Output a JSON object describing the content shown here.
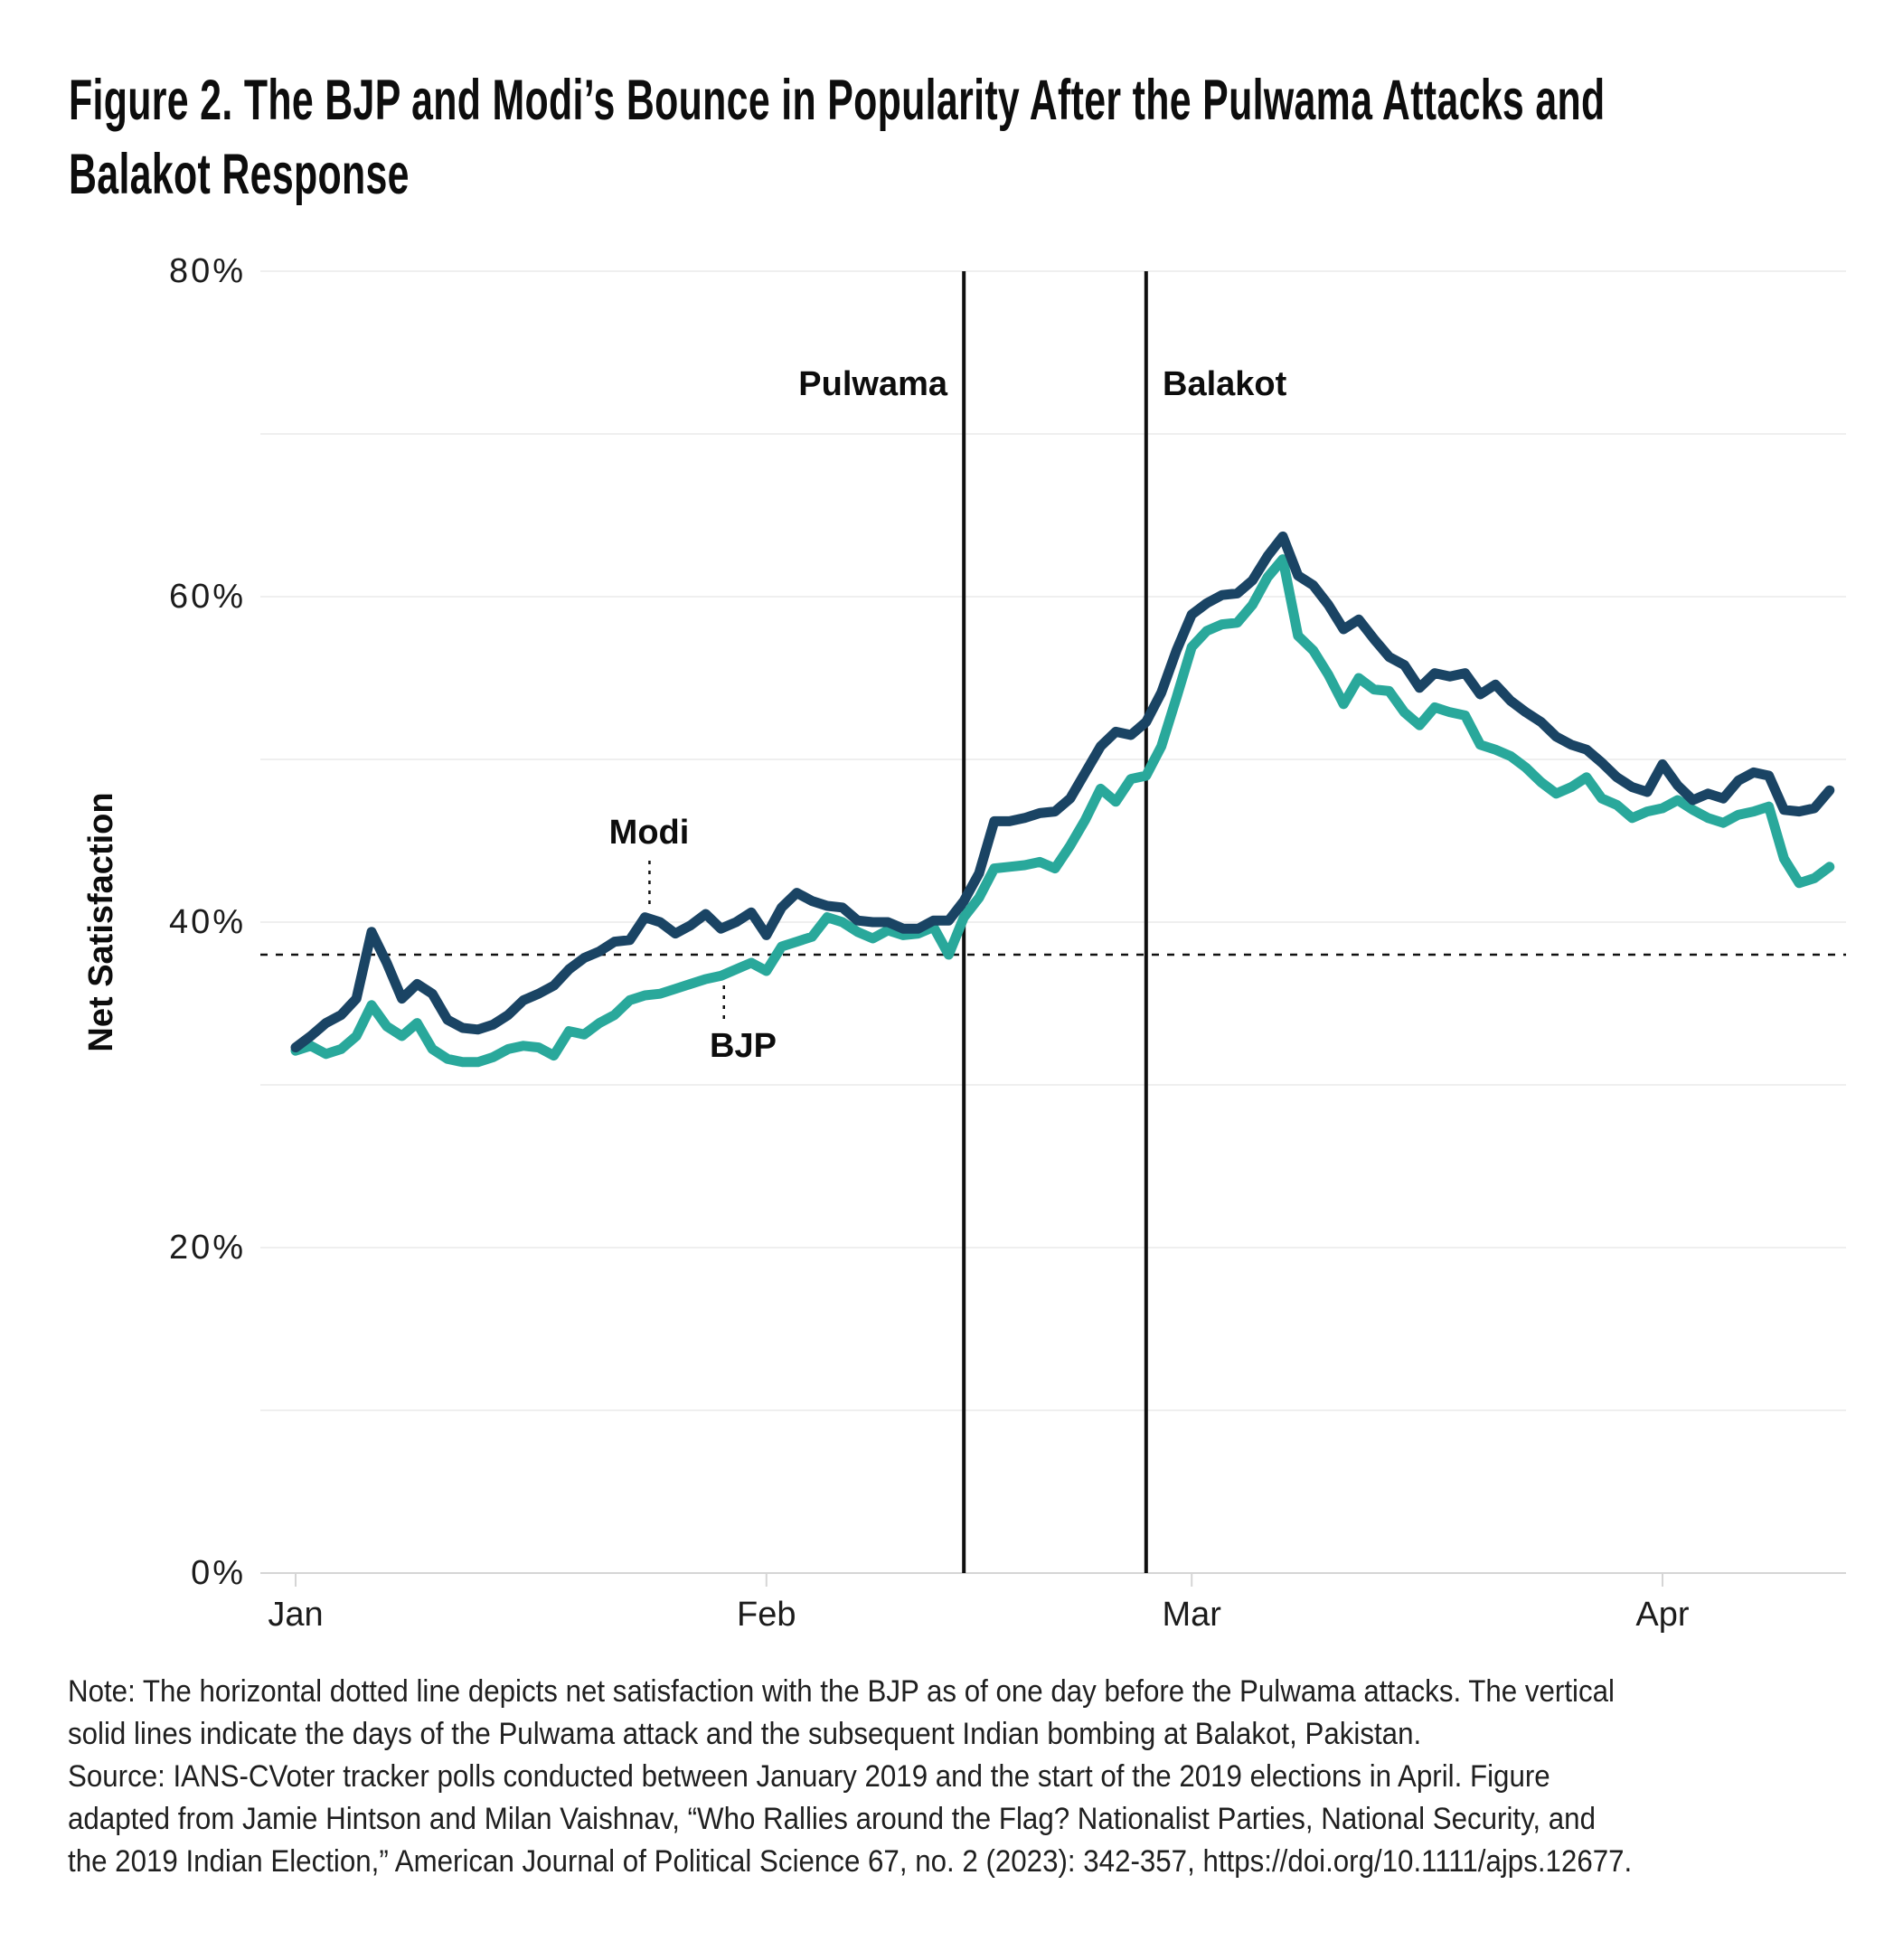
{
  "figure": {
    "title": "Figure 2. The BJP and Modi’s Bounce in Popularity After the Pulwama Attacks and Balakot Response",
    "title_lines": [
      "Figure 2. The BJP and Modi’s Bounce in Popularity After the Pulwama Attacks and",
      "Balakot Response"
    ]
  },
  "axes": {
    "y_label": "Net Satisfaction",
    "y_ticks": [
      {
        "value": 0,
        "label": "0%"
      },
      {
        "value": 20,
        "label": "20%"
      },
      {
        "value": 40,
        "label": "40%"
      },
      {
        "value": 60,
        "label": "60%"
      },
      {
        "value": 80,
        "label": "80%"
      }
    ],
    "grid_values": [
      10,
      20,
      30,
      40,
      50,
      60,
      70,
      80
    ],
    "x_ticks": [
      {
        "day": 0,
        "label": "Jan"
      },
      {
        "day": 31,
        "label": "Feb"
      },
      {
        "day": 59,
        "label": "Mar"
      },
      {
        "day": 90,
        "label": "Apr"
      }
    ],
    "ylim": [
      0,
      80
    ]
  },
  "events": [
    {
      "label": "Pulwama",
      "day": 44,
      "label_side": "left"
    },
    {
      "label": "Balakot",
      "day": 56,
      "label_side": "right"
    }
  ],
  "reference_line": {
    "value": 38,
    "style": "dotted",
    "meaning": "Net satisfaction with the BJP as of one day before the Pulwama attacks"
  },
  "annotations": [
    {
      "label": "Modi",
      "series": "Modi",
      "day": 23.3
    },
    {
      "label": "BJP",
      "series": "BJP",
      "day": 28.2
    }
  ],
  "colors": {
    "modi": "#1a4464",
    "bjp": "#29a89b",
    "event_line": "#0f0f0f",
    "reference_line": "#111111",
    "leader_line": "#111111",
    "grid": "#efefef",
    "axis": "#d5d5d5",
    "text": "#111111"
  },
  "note": {
    "lines": [
      "Note: The horizontal dotted line depicts net satisfaction with the BJP as of one day before the Pulwama attacks. The vertical",
      "solid lines indicate the days of the Pulwama attack and the subsequent Indian bombing at Balakot, Pakistan.",
      "Source: IANS-CVoter tracker polls conducted between January 2019 and the start of the 2019 elections in April. Figure",
      "adapted from Jamie Hintson and Milan Vaishnav, “Who Rallies around the Flag? Nationalist Parties, National Security, and",
      "the 2019 Indian Election,” American Journal of Political Science 67, no. 2 (2023): 342-357, https://doi.org/10.1111/ajps.12677."
    ]
  },
  "chart_data": {
    "type": "line",
    "title": "Figure 2. The BJP and Modi’s Bounce in Popularity After the Pulwama Attacks and Balakot Response",
    "xlabel": "",
    "ylabel": "Net Satisfaction",
    "ylim": [
      0,
      80
    ],
    "grid": "horizontal, every 10%",
    "legend_position": "inline annotations",
    "x_unit": "daily tracker poll, day offset from first point (Jan)",
    "x_tick_labels": [
      "Jan",
      "Feb",
      "Mar",
      "Apr"
    ],
    "x_tick_days": [
      0,
      31,
      59,
      90
    ],
    "event_days": {
      "Pulwama": 44,
      "Balakot": 56
    },
    "reference_line_value": 38,
    "series": [
      {
        "name": "Modi",
        "start_day": 0,
        "values": [
          32.3,
          33.0,
          33.8,
          34.3,
          35.3,
          39.4,
          37.5,
          35.3,
          36.2,
          35.6,
          34.0,
          33.5,
          33.4,
          33.7,
          34.3,
          35.2,
          35.6,
          36.1,
          37.1,
          37.8,
          38.2,
          38.8,
          38.9,
          40.3,
          40.0,
          39.3,
          39.8,
          40.5,
          39.6,
          40.0,
          40.6,
          39.2,
          40.9,
          41.8,
          41.3,
          41.0,
          40.9,
          40.1,
          40.0,
          40.0,
          39.6,
          39.6,
          40.1,
          40.1,
          41.3,
          43.0,
          46.2,
          46.2,
          46.4,
          46.7,
          46.8,
          47.6,
          49.2,
          50.8,
          51.7,
          51.5,
          52.3,
          54.1,
          56.7,
          58.9,
          59.6,
          60.1,
          60.2,
          61.0,
          62.5,
          63.7,
          61.3,
          60.7,
          59.5,
          58.0,
          58.6,
          57.4,
          56.3,
          55.8,
          54.4,
          55.3,
          55.1,
          55.3,
          54.0,
          54.6,
          53.6,
          52.9,
          52.3,
          51.4,
          50.9,
          50.6,
          49.8,
          48.9,
          48.3,
          48.0,
          49.7,
          48.4,
          47.5,
          47.9,
          47.6,
          48.7,
          49.2,
          49.0,
          46.9,
          46.8,
          47.0,
          48.1
        ]
      },
      {
        "name": "BJP",
        "start_day": 0,
        "values": [
          32.1,
          32.4,
          31.9,
          32.2,
          33.0,
          34.9,
          33.6,
          33.0,
          33.8,
          32.2,
          31.6,
          31.4,
          31.4,
          31.7,
          32.2,
          32.4,
          32.3,
          31.8,
          33.3,
          33.1,
          33.8,
          34.3,
          35.2,
          35.5,
          35.6,
          35.9,
          36.2,
          36.5,
          36.7,
          37.1,
          37.5,
          37.0,
          38.5,
          38.8,
          39.1,
          40.3,
          40.0,
          39.4,
          39.0,
          39.5,
          39.2,
          39.3,
          39.7,
          38.0,
          40.3,
          41.5,
          43.3,
          43.4,
          43.5,
          43.7,
          43.3,
          44.7,
          46.3,
          48.2,
          47.4,
          48.8,
          49.0,
          50.8,
          53.8,
          56.9,
          57.9,
          58.3,
          58.4,
          59.5,
          61.2,
          62.3,
          57.6,
          56.7,
          55.2,
          53.4,
          55.0,
          54.3,
          54.2,
          52.9,
          52.1,
          53.2,
          52.9,
          52.7,
          50.9,
          50.6,
          50.2,
          49.5,
          48.6,
          47.9,
          48.3,
          48.9,
          47.6,
          47.2,
          46.4,
          46.8,
          47.0,
          47.5,
          46.9,
          46.4,
          46.1,
          46.6,
          46.8,
          47.1,
          43.9,
          42.4,
          42.7,
          43.4
        ]
      }
    ]
  }
}
